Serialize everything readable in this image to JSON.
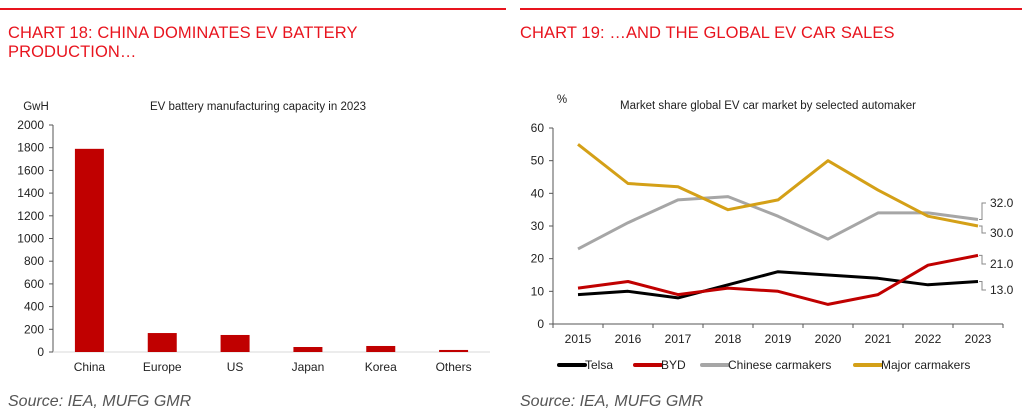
{
  "page": {
    "left_panel": {
      "title": "CHART 18: CHINA DOMINATES EV BATTERY PRODUCTION…",
      "title_line1": "CHART 18: CHINA DOMINATES EV BATTERY",
      "title_line2": "PRODUCTION…",
      "source": "Source: IEA, MUFG GMR"
    },
    "right_panel": {
      "title": "CHART 19: …AND THE GLOBAL EV CAR SALES",
      "source": "Source: IEA, MUFG GMR"
    },
    "colors": {
      "accent": "#e8141e",
      "bar": "#c00000"
    }
  },
  "chart_data": [
    {
      "type": "bar",
      "title": "EV battery manufacturing capacity in 2023",
      "ylabel": "GwH",
      "xlabel": "",
      "categories": [
        "China",
        "Europe",
        "US",
        "Japan",
        "Korea",
        "Others"
      ],
      "values": [
        1790,
        167,
        150,
        44,
        53,
        18
      ],
      "ylim": [
        0,
        2000
      ],
      "yticks": [
        0,
        200,
        400,
        600,
        800,
        1000,
        1200,
        1400,
        1600,
        1800,
        2000
      ],
      "color": "#c00000",
      "grid": false,
      "legend": "none"
    },
    {
      "type": "line",
      "title": "Market share global EV car market by selected automaker",
      "ylabel": "%",
      "xlabel": "",
      "x": [
        "2015",
        "2016",
        "2017",
        "2018",
        "2019",
        "2020",
        "2021",
        "2022",
        "2023"
      ],
      "ylim": [
        0,
        60
      ],
      "yticks": [
        0,
        10,
        20,
        30,
        40,
        50,
        60
      ],
      "grid": false,
      "legend": "bottom",
      "series": [
        {
          "name": "Telsa",
          "color": "#000000",
          "values": [
            9,
            10,
            8,
            12,
            16,
            15,
            14,
            12,
            13
          ],
          "end_label": "13.0"
        },
        {
          "name": "BYD",
          "color": "#c00000",
          "values": [
            11,
            13,
            9,
            11,
            10,
            6,
            9,
            18,
            21
          ],
          "end_label": "21.0"
        },
        {
          "name": "Chinese carmakers",
          "color": "#a6a6a6",
          "values": [
            23,
            31,
            38,
            39,
            33,
            26,
            34,
            34,
            32
          ],
          "end_label": "32.0"
        },
        {
          "name": "Major carmakers",
          "color": "#d4a017",
          "values": [
            55,
            43,
            42,
            35,
            38,
            50,
            41,
            33,
            30
          ],
          "end_label": "30.0"
        }
      ]
    }
  ]
}
